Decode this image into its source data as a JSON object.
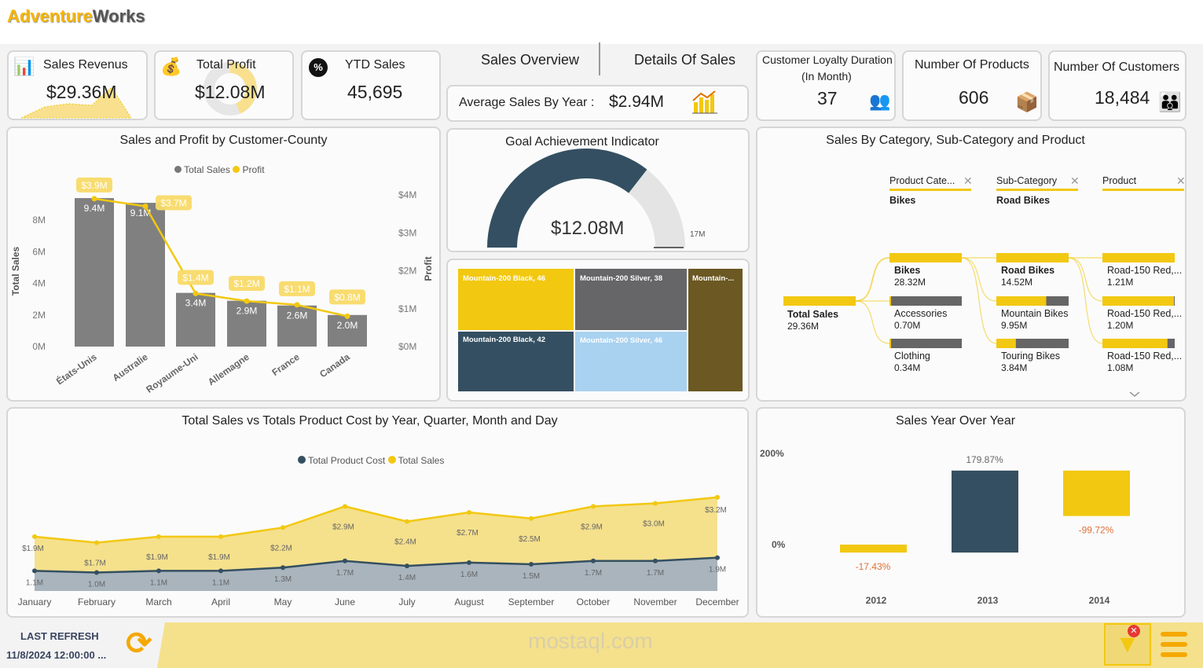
{
  "app": {
    "logo_a": "Adventure",
    "logo_b": "Works"
  },
  "kpis": {
    "sales_revenue": {
      "label": "Sales Revenus",
      "value": "$29.36M"
    },
    "total_profit": {
      "label": "Total Profit",
      "value": "$12.08M"
    },
    "ytd_sales": {
      "label": "YTD Sales",
      "value": "45,695"
    },
    "loyalty": {
      "label1": "Customer Loyalty Duration",
      "label2": "(In Month)",
      "value": "37"
    },
    "products": {
      "label": "Number Of Products",
      "value": "606"
    },
    "customers": {
      "label": "Number Of Customers",
      "value": "18,484"
    }
  },
  "nav": {
    "tab1": "Sales Overview",
    "tab2": "Details Of Sales"
  },
  "avg_sales": {
    "label": "Average Sales By Year :",
    "value": "$2.94M"
  },
  "gauge": {
    "title": "Goal Achievement Indicator",
    "value_label": "$12.08M",
    "max_label": "17M",
    "value": 12.08,
    "max": 17
  },
  "treemap": {
    "items": [
      {
        "label": "Mountain-200 Black, 46",
        "color": "#f2c811"
      },
      {
        "label": "Mountain-200 Silver, 38",
        "color": "#666669"
      },
      {
        "label": "Mountain-...",
        "color": "#6b5822"
      },
      {
        "label": "Mountain-200 Black, 42",
        "color": "#344f61"
      },
      {
        "label": "Mountain-200 Silver, 46",
        "color": "#a9d2f0"
      }
    ]
  },
  "decomp": {
    "title": "Sales By Category, Sub-Category and Product",
    "headers": [
      {
        "label": "Product Cate...",
        "selected": "Bikes"
      },
      {
        "label": "Sub-Category",
        "selected": "Road Bikes"
      },
      {
        "label": "Product",
        "selected": ""
      }
    ],
    "root": {
      "name": "Total Sales",
      "value": "29.36M"
    },
    "col1": [
      {
        "name": "Bikes",
        "value": "28.32M",
        "fill": 1
      },
      {
        "name": "Accessories",
        "value": "0.70M",
        "fill": 0.02
      },
      {
        "name": "Clothing",
        "value": "0.34M",
        "fill": 0.01
      }
    ],
    "col2": [
      {
        "name": "Road Bikes",
        "value": "14.52M",
        "fill": 1
      },
      {
        "name": "Mountain Bikes",
        "value": "9.95M",
        "fill": 0.69
      },
      {
        "name": "Touring Bikes",
        "value": "3.84M",
        "fill": 0.27
      }
    ],
    "col3": [
      {
        "name": "Road-150 Red,...",
        "value": "1.21M",
        "fill": 1
      },
      {
        "name": "Road-150 Red,...",
        "value": "1.20M",
        "fill": 0.99
      },
      {
        "name": "Road-150 Red,...",
        "value": "1.08M",
        "fill": 0.9
      }
    ]
  },
  "footer": {
    "refresh_label": "LAST REFRESH",
    "refresh_time": "11/8/2024 12:00:00 ...",
    "watermark": "mostaql.com"
  },
  "chart_data": [
    {
      "type": "bar",
      "title": "Sales and Profit by Customer-County",
      "legend": [
        "Total Sales",
        "Profit"
      ],
      "legend_position": "top-center",
      "categories": [
        "États-Unis",
        "Australie",
        "Royaume-Uni",
        "Allemagne",
        "France",
        "Canada"
      ],
      "series": [
        {
          "name": "Total Sales",
          "values": [
            9.4,
            9.1,
            3.4,
            2.9,
            2.6,
            2.0
          ],
          "labels": [
            "9.4M",
            "9.1M",
            "3.4M",
            "2.9M",
            "2.6M",
            "2.0M"
          ]
        },
        {
          "name": "Profit",
          "values": [
            3.9,
            3.7,
            1.4,
            1.2,
            1.1,
            0.8
          ],
          "labels": [
            "$3.9M",
            "$3.7M",
            "$1.4M",
            "$1.2M",
            "$1.1M",
            "$0.8M"
          ]
        }
      ],
      "ylabel": "Total Sales",
      "y2label": "Profit",
      "yticks": [
        "0M",
        "2M",
        "4M",
        "6M",
        "8M"
      ],
      "y2ticks": [
        "$0M",
        "$1M",
        "$2M",
        "$3M",
        "$4M"
      ]
    },
    {
      "type": "area",
      "title": "Total Sales vs Totals Product Cost by Year, Quarter, Month and Day",
      "legend": [
        "Total Product Cost",
        "Total Sales"
      ],
      "legend_position": "top-center",
      "categories": [
        "January",
        "February",
        "March",
        "April",
        "May",
        "June",
        "July",
        "August",
        "September",
        "October",
        "November",
        "December"
      ],
      "series": [
        {
          "name": "Total Sales",
          "values": [
            1.9,
            1.7,
            1.9,
            1.9,
            2.2,
            2.9,
            2.4,
            2.7,
            2.5,
            2.9,
            3.0,
            3.2
          ],
          "labels": [
            "$1.9M",
            "$1.7M",
            "$1.9M",
            "$1.9M",
            "$2.2M",
            "$2.9M",
            "$2.4M",
            "$2.7M",
            "$2.5M",
            "$2.9M",
            "$3.0M",
            "$3.2M"
          ]
        },
        {
          "name": "Total Product Cost",
          "values": [
            1.1,
            1.0,
            1.1,
            1.1,
            1.3,
            1.7,
            1.4,
            1.6,
            1.5,
            1.7,
            1.7,
            1.9
          ],
          "labels": [
            "1.1M",
            "1.0M",
            "1.1M",
            "1.1M",
            "1.3M",
            "1.7M",
            "1.4M",
            "1.6M",
            "1.5M",
            "1.7M",
            "1.7M",
            "1.9M"
          ]
        }
      ]
    },
    {
      "type": "bar",
      "title": "Sales Year Over Year",
      "categories": [
        "2012",
        "2013",
        "2014"
      ],
      "values": [
        -17.43,
        179.87,
        -99.72
      ],
      "labels": [
        "-17.43%",
        "179.87%",
        "-99.72%"
      ],
      "yticks": [
        "0%",
        "200%"
      ]
    }
  ]
}
